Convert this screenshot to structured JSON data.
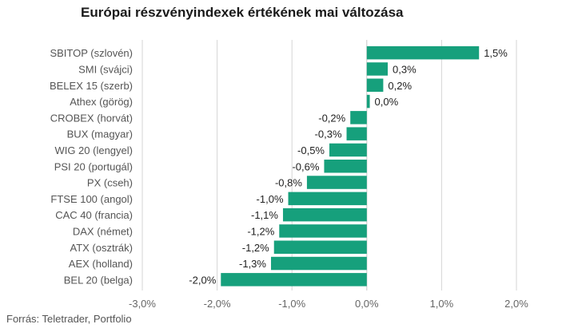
{
  "chart_data": {
    "type": "bar",
    "orientation": "horizontal",
    "title": "Európai részvényindexek értékének mai változása",
    "categories": [
      "SBITOP (szlovén)",
      "SMI (svájci)",
      "BELEX 15 (szerb)",
      "Athex (görög)",
      "CROBEX (horvát)",
      "BUX (magyar)",
      "WIG 20 (lengyel)",
      "PSI 20 (portugál)",
      "PX (cseh)",
      "FTSE 100 (angol)",
      "CAC 40 (francia)",
      "DAX (német)",
      "ATX (osztrák)",
      "AEX (holland)",
      "BEL 20 (belga)"
    ],
    "values": [
      1.5,
      0.28,
      0.22,
      0.04,
      -0.22,
      -0.27,
      -0.5,
      -0.57,
      -0.8,
      -1.05,
      -1.12,
      -1.17,
      -1.24,
      -1.28,
      -1.95
    ],
    "value_labels": [
      "1,5%",
      "0,3%",
      "0,2%",
      "0,0%",
      "-0,2%",
      "-0,3%",
      "-0,5%",
      "-0,6%",
      "-0,8%",
      "-1,0%",
      "-1,1%",
      "-1,2%",
      "-1,2%",
      "-1,3%",
      "-2,0%"
    ],
    "xlim": [
      -3.0,
      2.0
    ],
    "x_ticks": [
      -3.0,
      -2.0,
      -1.0,
      0.0,
      1.0,
      2.0
    ],
    "x_tick_labels": [
      "-3,0%",
      "-2,0%",
      "-1,0%",
      "0,0%",
      "1,0%",
      "2,0%"
    ],
    "grid": true,
    "bar_color": "#16a07c",
    "source": "Forrás: Teletrader, Portfolio"
  }
}
